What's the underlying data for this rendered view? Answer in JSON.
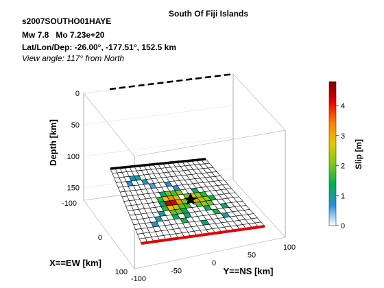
{
  "chart_data": {
    "type": "heatmap",
    "title": "South Of Fiji Islands",
    "header": {
      "event_id": "s2007SOUTHO01HAYE",
      "mw": "Mw 7.8",
      "mo": "Mo 7.23e+20",
      "latlondep": "Lat/Lon/Dep: -26.00°, -177.51°, 152.5 km",
      "view": "View angle: 117° from North"
    },
    "xlabel": "X==EW [km]",
    "ylabel": "Y==NS [km]",
    "zlabel": "Depth [km]",
    "xlim": [
      -100,
      100
    ],
    "ylim": [
      -100,
      100
    ],
    "zlim": [
      0,
      170
    ],
    "x_ticks": [
      "-100",
      "0",
      "100"
    ],
    "y_ticks": [
      "-100",
      "-50",
      "0",
      "50",
      "100"
    ],
    "z_ticks": [
      "0",
      "50",
      "100",
      "150"
    ],
    "colorbar": {
      "label": "Slip [m]",
      "ticks": [
        "0",
        "1",
        "2",
        "3",
        "4"
      ],
      "range": [
        0,
        4.8
      ],
      "colormap": [
        "#ffffff",
        "#2b8cd6",
        "#00b050",
        "#7fc81a",
        "#e6c800",
        "#ff8000",
        "#e60000",
        "#7a0000"
      ]
    },
    "grid": {
      "rows": 16,
      "cols": 20
    },
    "slip_cells": [
      [
        2,
        3,
        0.8
      ],
      [
        2,
        4,
        1.0
      ],
      [
        3,
        2,
        0.7
      ],
      [
        3,
        5,
        0.9
      ],
      [
        4,
        6,
        0.6
      ],
      [
        4,
        9,
        0.8
      ],
      [
        5,
        10,
        0.7
      ],
      [
        6,
        7,
        1.1
      ],
      [
        6,
        8,
        2.0
      ],
      [
        6,
        9,
        1.8
      ],
      [
        6,
        10,
        2.2
      ],
      [
        6,
        13,
        1.2
      ],
      [
        7,
        6,
        1.6
      ],
      [
        7,
        7,
        2.6
      ],
      [
        7,
        8,
        3.4
      ],
      [
        7,
        9,
        2.4
      ],
      [
        7,
        11,
        2.0
      ],
      [
        7,
        12,
        2.6
      ],
      [
        7,
        13,
        2.2
      ],
      [
        7,
        14,
        1.6
      ],
      [
        8,
        6,
        1.2
      ],
      [
        8,
        7,
        4.4
      ],
      [
        8,
        8,
        4.2
      ],
      [
        8,
        9,
        3.2
      ],
      [
        8,
        10,
        2.0
      ],
      [
        8,
        11,
        2.2
      ],
      [
        8,
        12,
        3.0
      ],
      [
        8,
        13,
        2.4
      ],
      [
        8,
        14,
        2.2
      ],
      [
        8,
        15,
        1.4
      ],
      [
        9,
        6,
        1.6
      ],
      [
        9,
        7,
        2.8
      ],
      [
        9,
        8,
        2.4
      ],
      [
        9,
        9,
        1.9
      ],
      [
        9,
        10,
        1.7
      ],
      [
        9,
        12,
        1.8
      ],
      [
        9,
        13,
        2.2
      ],
      [
        9,
        14,
        2.0
      ],
      [
        10,
        5,
        1.0
      ],
      [
        10,
        7,
        1.9
      ],
      [
        10,
        8,
        2.0
      ],
      [
        10,
        9,
        1.4
      ],
      [
        10,
        13,
        1.3
      ],
      [
        10,
        16,
        1.2
      ],
      [
        11,
        4,
        0.9
      ],
      [
        11,
        7,
        1.3
      ],
      [
        11,
        9,
        1.1
      ],
      [
        11,
        14,
        1.5
      ],
      [
        12,
        3,
        0.8
      ],
      [
        12,
        8,
        1.5
      ],
      [
        12,
        15,
        1.0
      ],
      [
        13,
        11,
        1.2
      ]
    ]
  }
}
